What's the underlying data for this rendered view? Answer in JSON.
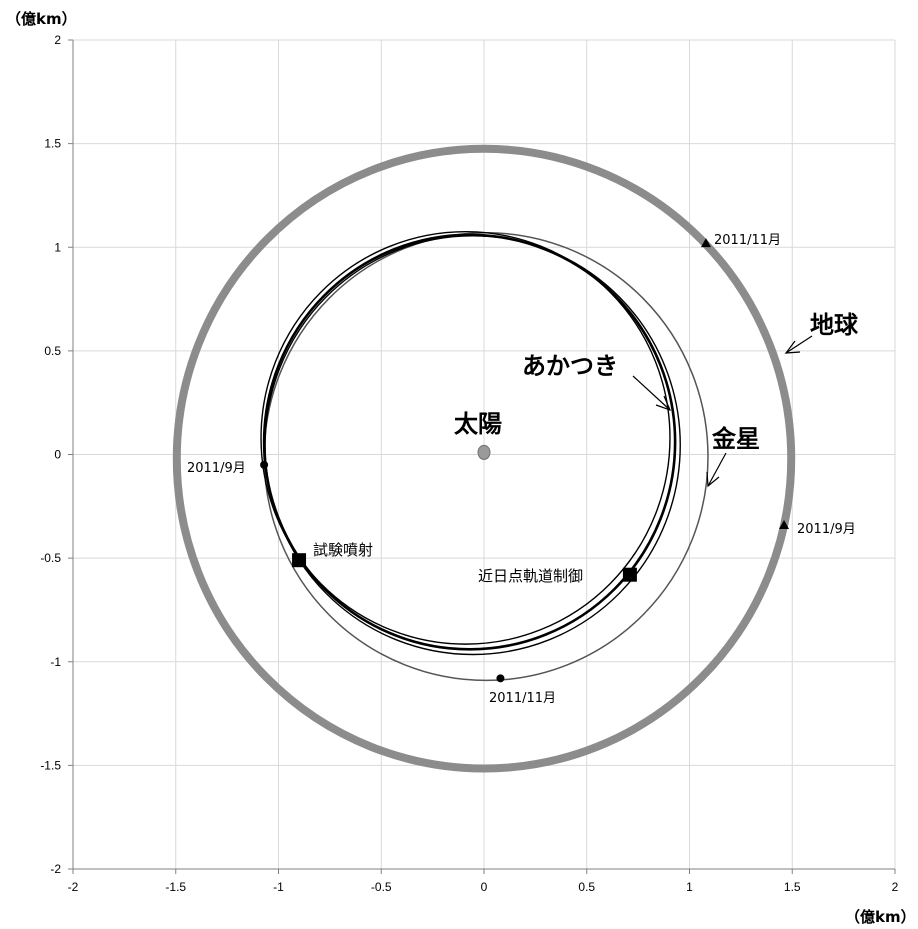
{
  "chart_data": {
    "type": "line",
    "title": "",
    "xlabel": "（億km）",
    "ylabel": "（億km）",
    "xlim": [
      -2,
      2
    ],
    "ylim": [
      -2,
      2
    ],
    "grid": true,
    "x_ticks": [
      "-2",
      "-1.5",
      "-1",
      "-0.5",
      "0",
      "0.5",
      "1",
      "1.5",
      "2"
    ],
    "y_ticks": [
      "2",
      "1.5",
      "1",
      "0.5",
      "0",
      "-0.5",
      "-1",
      "-1.5",
      "-2"
    ],
    "earth_orbit": {
      "name": "地球",
      "cx": 0,
      "cy": -0.02,
      "r": 1.495
    },
    "venus_orbit": {
      "name": "金星",
      "cx": 0.01,
      "cy": -0.01,
      "r": 1.08
    },
    "akatsuki_orbit": {
      "name": "あかつき",
      "cx": -0.07,
      "cy": 0.06,
      "r": 1.0
    },
    "sun": {
      "name": "太陽",
      "x": 0,
      "y": 0.01
    },
    "markers": [
      {
        "id": "earth-2011-11",
        "shape": "triangle",
        "x": 1.08,
        "y": 1.02,
        "label": "2011/11月"
      },
      {
        "id": "earth-2011-9",
        "shape": "triangle",
        "x": 1.46,
        "y": -0.34,
        "label": "2011/9月"
      },
      {
        "id": "venus-2011-9",
        "shape": "circle",
        "x": -1.07,
        "y": -0.05,
        "label": "2011/9月"
      },
      {
        "id": "venus-2011-11",
        "shape": "circle",
        "x": 0.08,
        "y": -1.08,
        "label": "2011/11月"
      },
      {
        "id": "test-firing",
        "shape": "square",
        "x": -0.9,
        "y": -0.51,
        "label": "試験噴射"
      },
      {
        "id": "perihelion-control",
        "shape": "square",
        "x": 0.71,
        "y": -0.58,
        "label": "近日点軌道制御"
      }
    ]
  }
}
